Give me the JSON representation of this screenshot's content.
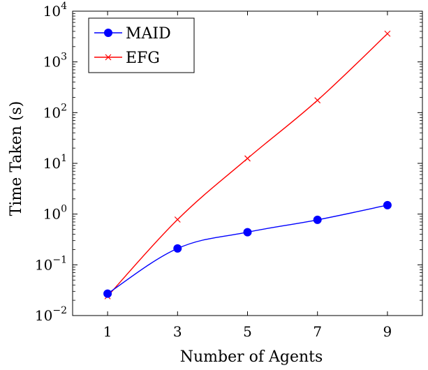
{
  "chart_data": {
    "type": "line",
    "title": "",
    "xlabel": "Number of Agents",
    "ylabel": "Time Taken (s)",
    "x": [
      1,
      3,
      5,
      7,
      9
    ],
    "xlim": [
      0,
      10
    ],
    "yscale": "log",
    "ylim": [
      0.01,
      10000
    ],
    "y_ticks": [
      {
        "value": 0.01,
        "base": "10",
        "exp": "−2"
      },
      {
        "value": 0.1,
        "base": "10",
        "exp": "−1"
      },
      {
        "value": 1,
        "base": "10",
        "exp": "0"
      },
      {
        "value": 10,
        "base": "10",
        "exp": "1"
      },
      {
        "value": 100,
        "base": "10",
        "exp": "2"
      },
      {
        "value": 1000,
        "base": "10",
        "exp": "3"
      },
      {
        "value": 10000,
        "base": "10",
        "exp": "4"
      }
    ],
    "x_tick_labels": [
      "1",
      "3",
      "5",
      "7",
      "9"
    ],
    "grid": false,
    "legend_position": "top-left",
    "series": [
      {
        "name": "MAID",
        "color": "#0000ff",
        "marker": "circle",
        "values": [
          0.027,
          0.21,
          0.44,
          0.77,
          1.5
        ]
      },
      {
        "name": "EFG",
        "color": "#ff0000",
        "marker": "cross",
        "values": [
          0.024,
          0.78,
          12.5,
          175,
          3600
        ]
      }
    ]
  }
}
